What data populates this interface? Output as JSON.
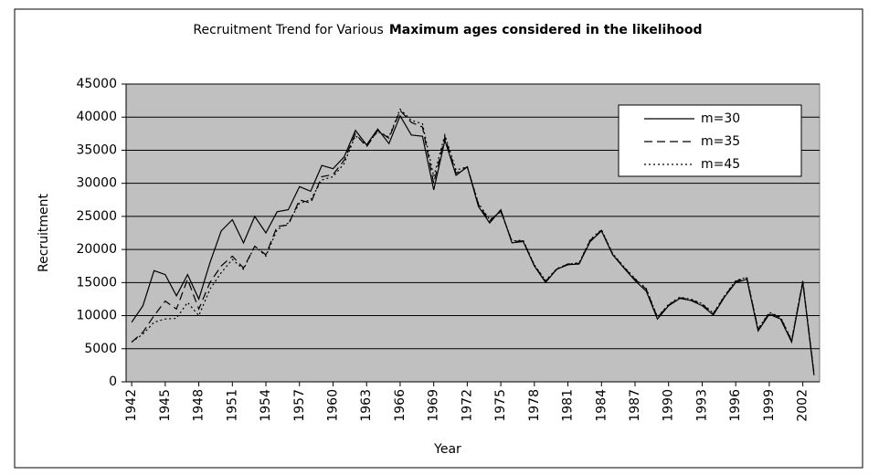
{
  "chart_data": {
    "type": "line",
    "title": [
      "Recruitment Trend for Various",
      "Maximum ages considered in the likelihood"
    ],
    "x_label": "Year",
    "y_label": "Recruitment",
    "x": [
      1942,
      1943,
      1944,
      1945,
      1946,
      1947,
      1948,
      1949,
      1950,
      1951,
      1952,
      1953,
      1954,
      1955,
      1956,
      1957,
      1958,
      1959,
      1960,
      1961,
      1962,
      1963,
      1964,
      1965,
      1966,
      1967,
      1968,
      1969,
      1970,
      1971,
      1972,
      1973,
      1974,
      1975,
      1976,
      1977,
      1978,
      1979,
      1980,
      1981,
      1982,
      1983,
      1984,
      1985,
      1986,
      1987,
      1988,
      1989,
      1990,
      1991,
      1992,
      1993,
      1994,
      1995,
      1996,
      1997,
      1998,
      1999,
      2000,
      2001,
      2002,
      2003
    ],
    "xlim": [
      1941.5,
      2003.5
    ],
    "xticks": [
      1942,
      1945,
      1948,
      1951,
      1954,
      1957,
      1960,
      1963,
      1966,
      1969,
      1972,
      1975,
      1978,
      1981,
      1984,
      1987,
      1990,
      1993,
      1996,
      1999,
      2002
    ],
    "ylim": [
      0,
      45000
    ],
    "yticks": [
      0,
      5000,
      10000,
      15000,
      20000,
      25000,
      30000,
      35000,
      40000,
      45000
    ],
    "grid": true,
    "plot_background": "#c0c0c0",
    "legend_position": "upper right",
    "series": [
      {
        "name": "m=30",
        "color": "#000000",
        "style": "solid",
        "values": [
          9000,
          11500,
          16800,
          16200,
          13000,
          16200,
          12500,
          18000,
          22800,
          24500,
          21000,
          25000,
          22500,
          25700,
          26000,
          29500,
          28800,
          32700,
          32200,
          34000,
          38000,
          35800,
          38200,
          36000,
          40200,
          37300,
          37100,
          29000,
          36500,
          31200,
          32500,
          26500,
          24000,
          26000,
          21000,
          21200,
          17500,
          15000,
          17000,
          17700,
          17800,
          21200,
          22800,
          19200,
          17200,
          15300,
          13700,
          9500,
          11500,
          12600,
          12300,
          11500,
          10100,
          12800,
          15000,
          15500,
          7700,
          10200,
          9500,
          6000,
          15000,
          1000
        ]
      },
      {
        "name": "m=35",
        "color": "#000000",
        "style": "dashed",
        "values": [
          6000,
          7500,
          10000,
          12200,
          11000,
          15500,
          11000,
          15000,
          17500,
          19000,
          17200,
          20500,
          19200,
          23500,
          23700,
          27500,
          27000,
          31000,
          31300,
          33500,
          37500,
          35500,
          38000,
          36800,
          41000,
          39200,
          38500,
          30000,
          37000,
          31500,
          32500,
          26800,
          24300,
          25800,
          21200,
          21300,
          17600,
          15200,
          17000,
          17800,
          17900,
          21400,
          22900,
          19300,
          17300,
          15500,
          14000,
          9700,
          11600,
          12700,
          12400,
          11700,
          10300,
          12900,
          15200,
          15700,
          7900,
          10400,
          9700,
          6200,
          15200,
          1200
        ]
      },
      {
        "name": "m=45",
        "color": "#000000",
        "style": "dotted",
        "values": [
          6000,
          7200,
          9000,
          9500,
          9600,
          12000,
          10000,
          14000,
          16500,
          18500,
          17000,
          20500,
          19000,
          23000,
          24000,
          27000,
          27500,
          30500,
          31000,
          33000,
          37200,
          35800,
          37800,
          37000,
          41200,
          39500,
          39000,
          31000,
          37300,
          32000,
          32500,
          27000,
          24500,
          25700,
          21300,
          21400,
          17700,
          15300,
          17100,
          17800,
          18000,
          21500,
          23000,
          19400,
          17400,
          15600,
          14100,
          9800,
          11700,
          12800,
          12500,
          11800,
          10400,
          13000,
          15300,
          15800,
          8000,
          10500,
          9800,
          6300,
          15300,
          1300
        ]
      }
    ]
  }
}
